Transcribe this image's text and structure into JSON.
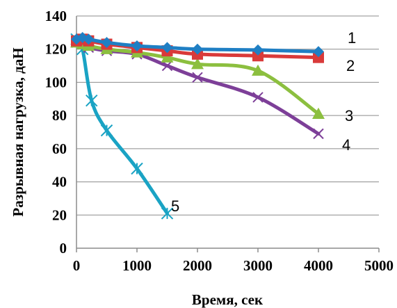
{
  "chart_data": {
    "type": "line",
    "title": "",
    "xlabel": "Время, сек",
    "ylabel": "Разрывная нагрузка, даН",
    "xlim": [
      0,
      5000
    ],
    "ylim": [
      0,
      140
    ],
    "xticks": [
      0,
      1000,
      2000,
      3000,
      4000,
      5000
    ],
    "yticks": [
      0,
      20,
      40,
      60,
      80,
      100,
      120,
      140
    ],
    "grid": "horizontal",
    "legend": "none",
    "series": [
      {
        "label": "1",
        "color": "#1f7fc4",
        "marker": "diamond",
        "x": [
          0,
          100,
          200,
          500,
          1000,
          1500,
          2000,
          3000,
          4000
        ],
        "y": [
          126,
          127,
          126,
          124,
          122,
          121,
          120,
          119.5,
          118.5
        ]
      },
      {
        "label": "2",
        "color": "#d93a3a",
        "marker": "square",
        "x": [
          0,
          100,
          200,
          500,
          1000,
          1500,
          2000,
          3000,
          4000
        ],
        "y": [
          125,
          126,
          125,
          123,
          121,
          119,
          117,
          116,
          115
        ]
      },
      {
        "label": "3",
        "color": "#8cbf3f",
        "marker": "triangle",
        "x": [
          0,
          100,
          200,
          500,
          1000,
          1500,
          2000,
          3000,
          4000
        ],
        "y": [
          124,
          123,
          122,
          120,
          118,
          115,
          111,
          107,
          81
        ]
      },
      {
        "label": "4",
        "color": "#7d3f98",
        "marker": "x",
        "x": [
          0,
          100,
          200,
          500,
          1000,
          1500,
          2000,
          3000,
          4000
        ],
        "y": [
          124,
          123,
          121,
          119,
          117,
          110,
          103,
          91,
          69
        ]
      },
      {
        "label": "5",
        "color": "#1aa3c4",
        "marker": "star",
        "x": [
          0,
          100,
          250,
          500,
          1000,
          1500
        ],
        "y": [
          126,
          120,
          89,
          71,
          48,
          21
        ]
      }
    ]
  }
}
